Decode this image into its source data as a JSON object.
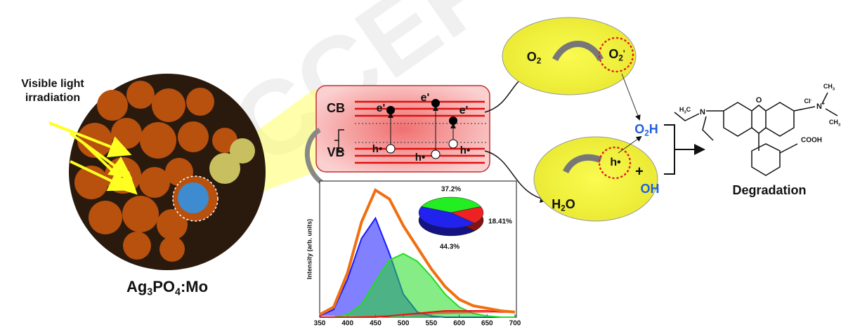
{
  "watermark": "ACCEPTED",
  "light_label": [
    "Visible light",
    "irradiation"
  ],
  "material": {
    "parts": [
      "Ag",
      "3",
      "PO",
      "4",
      ":Mo"
    ]
  },
  "bands": {
    "cb": "CB",
    "vb": "VB",
    "electrons": [
      "e'",
      "e'",
      "e'"
    ],
    "holes": [
      "h•",
      "h•",
      "h•"
    ]
  },
  "reactions": {
    "o2": [
      "O",
      "2"
    ],
    "superoxide": [
      "O",
      "2",
      "'"
    ],
    "hydroperoxyl": [
      "O",
      "2",
      "H"
    ],
    "water": [
      "H",
      "2",
      "O"
    ],
    "hole": "h•",
    "plus": "+",
    "hydroxyl": "OH"
  },
  "molecule": {
    "h3c": [
      "H",
      "3",
      "C"
    ],
    "n": "N",
    "o": "O",
    "cl": [
      "Cl",
      "-"
    ],
    "n_plus": [
      "N",
      "+"
    ],
    "ch3": [
      "CH",
      "3"
    ],
    "ch3_right": [
      "CH",
      "3"
    ],
    "cooh": "COOH"
  },
  "product": "Degradation",
  "spectrum": {
    "type": "line",
    "y_label": "Intensity (arb. units)",
    "x": [
      350,
      375,
      400,
      425,
      450,
      475,
      500,
      525,
      550,
      575,
      600,
      625,
      650,
      675,
      700
    ],
    "xlim": [
      350,
      700
    ],
    "xticks": [
      350,
      400,
      450,
      500,
      550,
      600,
      650,
      700
    ],
    "ylim": [
      0,
      1.05
    ],
    "series": [
      {
        "color": "#1a1aff",
        "values": [
          0.01,
          0.06,
          0.3,
          0.62,
          0.78,
          0.5,
          0.18,
          0.04,
          0.01,
          0,
          0,
          0,
          0,
          0,
          0
        ]
      },
      {
        "color": "#22dd22",
        "values": [
          0,
          0,
          0.02,
          0.1,
          0.28,
          0.45,
          0.5,
          0.44,
          0.32,
          0.18,
          0.08,
          0.03,
          0.01,
          0,
          0
        ]
      },
      {
        "color": "#ee1111",
        "values": [
          0,
          0,
          0,
          0,
          0,
          0.01,
          0.02,
          0.03,
          0.04,
          0.05,
          0.05,
          0.05,
          0.05,
          0.04,
          0.04
        ]
      },
      {
        "color": "#f07010",
        "values": [
          0.02,
          0.08,
          0.35,
          0.75,
          1.0,
          0.93,
          0.72,
          0.55,
          0.38,
          0.24,
          0.14,
          0.09,
          0.07,
          0.05,
          0.04
        ]
      }
    ]
  },
  "pie": {
    "type": "pie",
    "values": [
      37.2,
      18.41,
      44.3
    ],
    "value_labels": [
      "37.2%",
      "18.41%",
      "44.3%"
    ],
    "colors": [
      "#22ee22",
      "#ee2222",
      "#2222ee"
    ]
  }
}
